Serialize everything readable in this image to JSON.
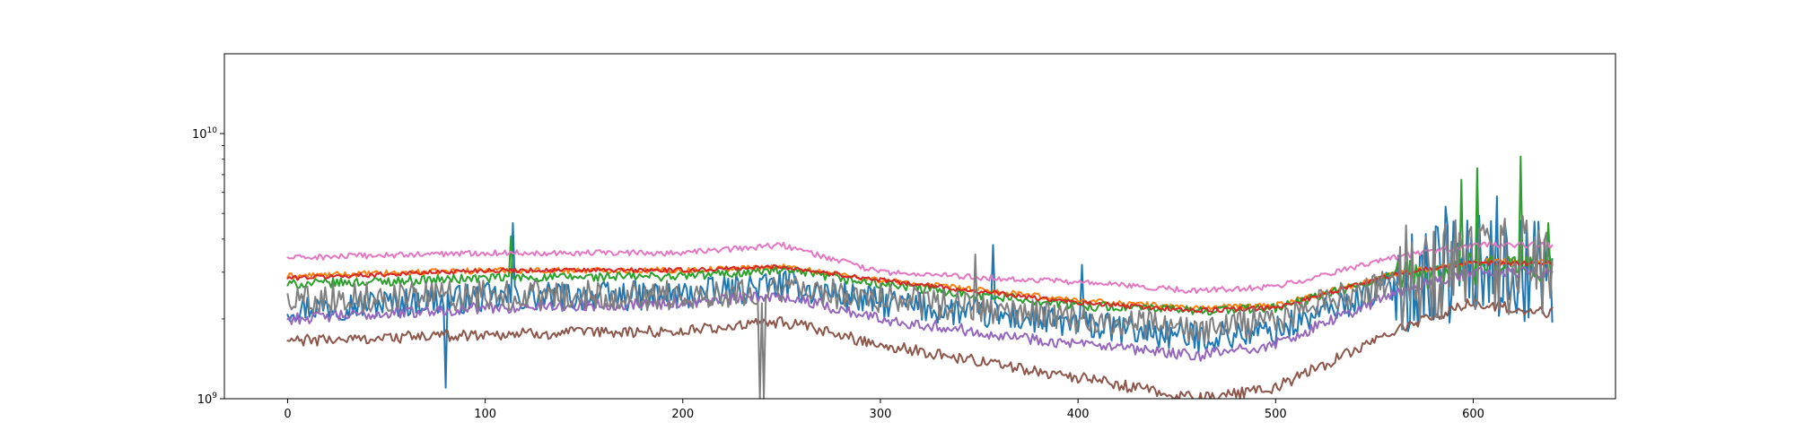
{
  "chart_data": {
    "type": "line",
    "title": "",
    "xlabel": "",
    "ylabel": "",
    "y_scale": "log",
    "xlim": [
      -32,
      672
    ],
    "ylim": [
      1000000000,
      20000000000
    ],
    "grid": false,
    "legend": "none",
    "x_ticks": [
      {
        "value": 0,
        "label": "0"
      },
      {
        "value": 100,
        "label": "100"
      },
      {
        "value": 200,
        "label": "200"
      },
      {
        "value": 300,
        "label": "300"
      },
      {
        "value": 400,
        "label": "400"
      },
      {
        "value": 500,
        "label": "500"
      },
      {
        "value": 600,
        "label": "600"
      }
    ],
    "y_ticks": [
      {
        "value": 1000000000,
        "base": "10",
        "exp": "9"
      },
      {
        "value": 10000000000,
        "base": "10",
        "exp": "10"
      }
    ],
    "x_max": 640,
    "series": [
      {
        "color": "#1f77b4",
        "noise": 0.13,
        "trend": [
          [
            0,
            2200000000
          ],
          [
            100,
            2400000000
          ],
          [
            200,
            2450000000
          ],
          [
            250,
            2700000000
          ],
          [
            300,
            2300000000
          ],
          [
            400,
            1900000000
          ],
          [
            460,
            1700000000
          ],
          [
            500,
            1800000000
          ],
          [
            560,
            2700000000
          ],
          [
            600,
            3200000000
          ],
          [
            640,
            3000000000
          ]
        ],
        "spikes": [
          [
            80,
            1100000000
          ],
          [
            114,
            4600000000
          ],
          [
            357,
            3800000000
          ],
          [
            402,
            3200000000
          ],
          [
            586,
            5300000000
          ],
          [
            612,
            5800000000
          ]
        ]
      },
      {
        "color": "#ff7f0e",
        "noise": 0.025,
        "trend": [
          [
            0,
            2900000000
          ],
          [
            100,
            3050000000
          ],
          [
            200,
            3050000000
          ],
          [
            250,
            3150000000
          ],
          [
            300,
            2800000000
          ],
          [
            400,
            2350000000
          ],
          [
            460,
            2200000000
          ],
          [
            500,
            2250000000
          ],
          [
            560,
            2950000000
          ],
          [
            600,
            3300000000
          ],
          [
            640,
            3300000000
          ]
        ],
        "spikes": []
      },
      {
        "color": "#2ca02c",
        "noise": 0.04,
        "trend": [
          [
            0,
            2700000000
          ],
          [
            100,
            2850000000
          ],
          [
            200,
            2900000000
          ],
          [
            250,
            3050000000
          ],
          [
            300,
            2700000000
          ],
          [
            400,
            2250000000
          ],
          [
            460,
            2150000000
          ],
          [
            500,
            2200000000
          ],
          [
            560,
            2900000000
          ],
          [
            600,
            3100000000
          ],
          [
            640,
            3000000000
          ]
        ],
        "spikes": [
          [
            113,
            4100000000
          ],
          [
            594,
            6700000000
          ],
          [
            602,
            7400000000
          ],
          [
            624,
            8200000000
          ],
          [
            638,
            4600000000
          ]
        ]
      },
      {
        "color": "#d62728",
        "noise": 0.02,
        "trend": [
          [
            0,
            2850000000
          ],
          [
            100,
            3050000000
          ],
          [
            200,
            3050000000
          ],
          [
            250,
            3150000000
          ],
          [
            300,
            2800000000
          ],
          [
            400,
            2300000000
          ],
          [
            460,
            2150000000
          ],
          [
            500,
            2200000000
          ],
          [
            560,
            2950000000
          ],
          [
            600,
            3250000000
          ],
          [
            640,
            3250000000
          ]
        ],
        "spikes": []
      },
      {
        "color": "#9467bd",
        "noise": 0.05,
        "trend": [
          [
            0,
            2000000000
          ],
          [
            100,
            2200000000
          ],
          [
            200,
            2300000000
          ],
          [
            250,
            2450000000
          ],
          [
            300,
            2000000000
          ],
          [
            400,
            1600000000
          ],
          [
            460,
            1450000000
          ],
          [
            500,
            1600000000
          ],
          [
            560,
            2500000000
          ],
          [
            600,
            3000000000
          ],
          [
            640,
            3000000000
          ]
        ],
        "spikes": []
      },
      {
        "color": "#8c564b",
        "noise": 0.05,
        "trend": [
          [
            0,
            1650000000
          ],
          [
            100,
            1750000000
          ],
          [
            200,
            1800000000
          ],
          [
            250,
            1950000000
          ],
          [
            300,
            1600000000
          ],
          [
            400,
            1200000000
          ],
          [
            460,
            1000000000
          ],
          [
            500,
            1100000000
          ],
          [
            560,
            1800000000
          ],
          [
            600,
            2300000000
          ],
          [
            640,
            2100000000
          ]
        ],
        "spikes": []
      },
      {
        "color": "#e377c2",
        "noise": 0.025,
        "trend": [
          [
            0,
            3400000000
          ],
          [
            100,
            3550000000
          ],
          [
            200,
            3550000000
          ],
          [
            250,
            3800000000
          ],
          [
            300,
            3000000000
          ],
          [
            400,
            2750000000
          ],
          [
            460,
            2550000000
          ],
          [
            500,
            2650000000
          ],
          [
            560,
            3400000000
          ],
          [
            600,
            3800000000
          ],
          [
            640,
            3800000000
          ]
        ],
        "spikes": []
      },
      {
        "color": "#7f7f7f",
        "noise": 0.13,
        "trend": [
          [
            0,
            2400000000
          ],
          [
            100,
            2450000000
          ],
          [
            200,
            2450000000
          ],
          [
            250,
            2600000000
          ],
          [
            300,
            2400000000
          ],
          [
            400,
            2000000000
          ],
          [
            460,
            1800000000
          ],
          [
            500,
            2000000000
          ],
          [
            560,
            2800000000
          ],
          [
            600,
            3300000000
          ],
          [
            640,
            3200000000
          ]
        ],
        "spikes": [
          [
            239,
            1000000000
          ],
          [
            241,
            1000000000
          ],
          [
            348,
            3500000000
          ],
          [
            569,
            3900000000
          ]
        ]
      }
    ]
  }
}
